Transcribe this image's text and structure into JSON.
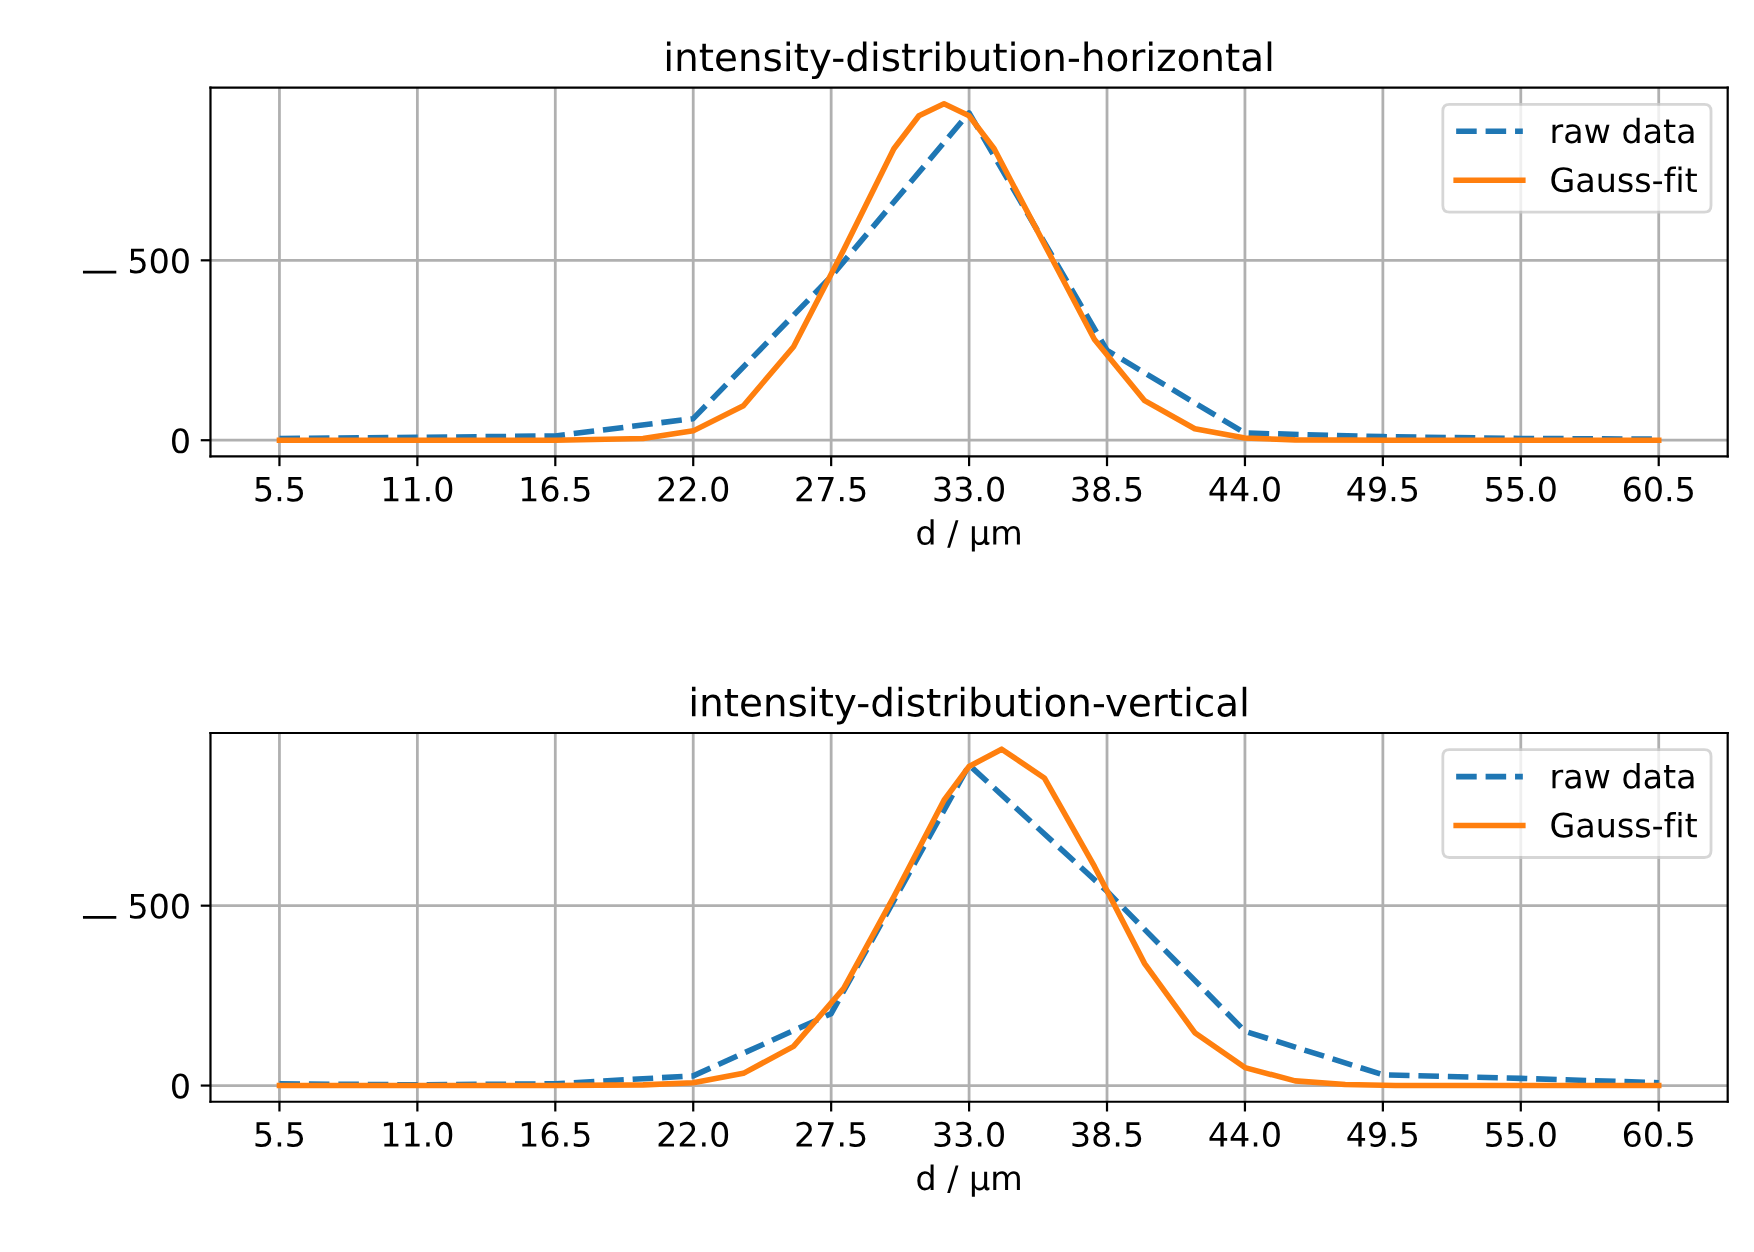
{
  "chart_data": [
    {
      "type": "line",
      "title": "intensity-distribution-horizontal",
      "xlabel": "d / µm",
      "ylabel": "|",
      "xlim": [
        2.75,
        63.25
      ],
      "xticks": [
        {
          "value": 5.5,
          "label": "5.5"
        },
        {
          "value": 11,
          "label": "11.0"
        },
        {
          "value": 16.5,
          "label": "16.5"
        },
        {
          "value": 22,
          "label": "22.0"
        },
        {
          "value": 27.5,
          "label": "27.5"
        },
        {
          "value": 33,
          "label": "33.0"
        },
        {
          "value": 38.5,
          "label": "38.5"
        },
        {
          "value": 44,
          "label": "44.0"
        },
        {
          "value": 49.5,
          "label": "49.5"
        },
        {
          "value": 55,
          "label": "55.0"
        },
        {
          "value": 60.5,
          "label": "60.5"
        }
      ],
      "ylim": [
        -45,
        980
      ],
      "yticks": [
        0,
        500
      ],
      "grid": true,
      "legend": "top right",
      "series": [
        {
          "name": "raw data",
          "color": "#1f77b4",
          "line_style": "dashed",
          "x": [
            5.5,
            11,
            16.5,
            22,
            27.5,
            33,
            38.5,
            44,
            49.5,
            55,
            60.5
          ],
          "values": [
            5,
            8,
            12,
            60,
            455,
            910,
            250,
            20,
            10,
            5,
            3
          ]
        },
        {
          "name": "Gauss-fit",
          "color": "#ff7f0e",
          "line_style": "solid",
          "x": [
            5.5,
            16.5,
            20,
            22,
            24,
            26,
            28,
            30,
            31,
            32,
            33,
            34,
            36,
            38,
            40,
            42,
            44,
            46,
            50,
            60.5
          ],
          "values": [
            0,
            0,
            5,
            26,
            96,
            260,
            529,
            810,
            902,
            935,
            902,
            810,
            545,
            280,
            110,
            32,
            6,
            1,
            0,
            0
          ]
        }
      ]
    },
    {
      "type": "line",
      "title": "intensity-distribution-vertical",
      "xlabel": "d / µm",
      "ylabel": "|",
      "xlim": [
        2.75,
        63.25
      ],
      "xticks": [
        {
          "value": 5.5,
          "label": "5.5"
        },
        {
          "value": 11,
          "label": "11.0"
        },
        {
          "value": 16.5,
          "label": "16.5"
        },
        {
          "value": 22,
          "label": "22.0"
        },
        {
          "value": 27.5,
          "label": "27.5"
        },
        {
          "value": 33,
          "label": "33.0"
        },
        {
          "value": 38.5,
          "label": "38.5"
        },
        {
          "value": 44,
          "label": "44.0"
        },
        {
          "value": 49.5,
          "label": "49.5"
        },
        {
          "value": 55,
          "label": "55.0"
        },
        {
          "value": 60.5,
          "label": "60.5"
        }
      ],
      "ylim": [
        -45,
        980
      ],
      "yticks": [
        0,
        500
      ],
      "grid": true,
      "legend": "top right",
      "series": [
        {
          "name": "raw data",
          "color": "#1f77b4",
          "line_style": "dashed",
          "x": [
            5.5,
            11,
            16.5,
            22,
            27.5,
            33,
            38.5,
            44,
            49.5,
            55,
            60.5
          ],
          "values": [
            5,
            2,
            5,
            27,
            200,
            891,
            540,
            151,
            30,
            20,
            8
          ]
        },
        {
          "name": "Gauss-fit",
          "color": "#ff7f0e",
          "line_style": "solid",
          "x": [
            5.5,
            16.5,
            20,
            22,
            24,
            26,
            28,
            30,
            32,
            33,
            34.3,
            36,
            38,
            40,
            42,
            44,
            46,
            48,
            50,
            60.5
          ],
          "values": [
            0,
            0,
            2,
            8,
            34,
            109,
            270,
            525,
            793,
            887,
            935,
            855,
            609,
            339,
            147,
            50,
            13,
            3,
            0,
            0
          ]
        }
      ]
    }
  ]
}
